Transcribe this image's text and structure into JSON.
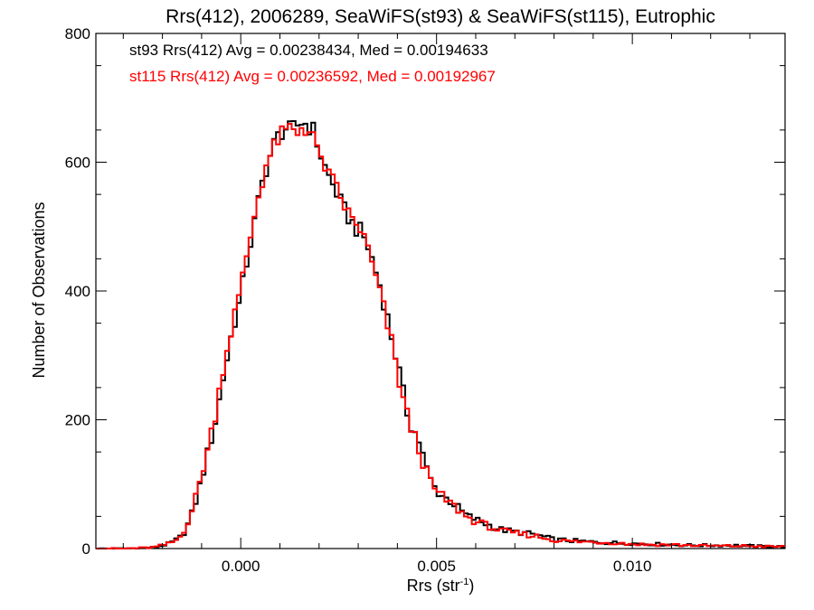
{
  "chart_data": {
    "type": "histogram",
    "title": "Rrs(412), 2006289, SeaWiFS(st93) & SeaWiFS(st115), Eutrophic",
    "xlabel": "Rrs (str",
    "xlabel_sup": "-1",
    "xlabel_close": ")",
    "ylabel": "Number of Observations",
    "xlim": [
      -0.0037,
      0.0139
    ],
    "ylim": [
      0,
      800
    ],
    "xticks": [
      0.0,
      0.005,
      0.01
    ],
    "xtick_labels": [
      "0.000",
      "0.005",
      "0.010"
    ],
    "yticks": [
      0,
      200,
      400,
      600,
      800
    ],
    "ytick_labels": [
      "0",
      "200",
      "400",
      "600",
      "800"
    ],
    "grid": false,
    "legend_placement": "top-left",
    "bin_width": 0.0001,
    "series": [
      {
        "name": "st93",
        "color": "#000000",
        "annotation": "st93 Rrs(412) Avg = 0.00238434, Med = 0.00194633",
        "points": [
          [
            -0.0037,
            0
          ],
          [
            -0.003,
            0
          ],
          [
            -0.0025,
            1
          ],
          [
            -0.0022,
            2
          ],
          [
            -0.002,
            5
          ],
          [
            -0.0018,
            8
          ],
          [
            -0.0016,
            15
          ],
          [
            -0.0015,
            20
          ],
          [
            -0.0014,
            30
          ],
          [
            -0.0013,
            45
          ],
          [
            -0.0012,
            62
          ],
          [
            -0.0011,
            85
          ],
          [
            -0.001,
            108
          ],
          [
            -0.0009,
            135
          ],
          [
            -0.0008,
            158
          ],
          [
            -0.0007,
            185
          ],
          [
            -0.0006,
            210
          ],
          [
            -0.0005,
            250
          ],
          [
            -0.0004,
            280
          ],
          [
            -0.0003,
            310
          ],
          [
            -0.0002,
            345
          ],
          [
            -0.0001,
            365
          ],
          [
            0.0,
            390
          ],
          [
            0.0001,
            430
          ],
          [
            0.0002,
            460
          ],
          [
            0.0003,
            490
          ],
          [
            0.0004,
            520
          ],
          [
            0.0005,
            555
          ],
          [
            0.0006,
            580
          ],
          [
            0.0007,
            600
          ],
          [
            0.0008,
            620
          ],
          [
            0.0009,
            635
          ],
          [
            0.001,
            645
          ],
          [
            0.0011,
            650
          ],
          [
            0.0012,
            655
          ],
          [
            0.0013,
            645
          ],
          [
            0.0014,
            660
          ],
          [
            0.0015,
            655
          ],
          [
            0.0016,
            670
          ],
          [
            0.0017,
            650
          ],
          [
            0.0018,
            660
          ],
          [
            0.0019,
            640
          ],
          [
            0.002,
            620
          ],
          [
            0.0021,
            600
          ],
          [
            0.0022,
            585
          ],
          [
            0.0023,
            570
          ],
          [
            0.0024,
            560
          ],
          [
            0.0025,
            545
          ],
          [
            0.0026,
            530
          ],
          [
            0.0027,
            520
          ],
          [
            0.0028,
            510
          ],
          [
            0.0029,
            500
          ],
          [
            0.003,
            495
          ],
          [
            0.0031,
            490
          ],
          [
            0.0032,
            475
          ],
          [
            0.0033,
            460
          ],
          [
            0.0034,
            440
          ],
          [
            0.0035,
            420
          ],
          [
            0.0036,
            400
          ],
          [
            0.0037,
            370
          ],
          [
            0.0038,
            345
          ],
          [
            0.0039,
            315
          ],
          [
            0.004,
            290
          ],
          [
            0.0041,
            255
          ],
          [
            0.0042,
            225
          ],
          [
            0.0043,
            200
          ],
          [
            0.0044,
            185
          ],
          [
            0.0045,
            175
          ],
          [
            0.0046,
            160
          ],
          [
            0.0047,
            130
          ],
          [
            0.0048,
            115
          ],
          [
            0.0049,
            100
          ],
          [
            0.005,
            90
          ],
          [
            0.0052,
            80
          ],
          [
            0.0054,
            72
          ],
          [
            0.0056,
            60
          ],
          [
            0.0058,
            50
          ],
          [
            0.006,
            45
          ],
          [
            0.0062,
            40
          ],
          [
            0.0064,
            35
          ],
          [
            0.0066,
            30
          ],
          [
            0.0068,
            28
          ],
          [
            0.007,
            26
          ],
          [
            0.0075,
            22
          ],
          [
            0.008,
            14
          ],
          [
            0.0085,
            12
          ],
          [
            0.009,
            10
          ],
          [
            0.0095,
            9
          ],
          [
            0.01,
            8
          ],
          [
            0.0105,
            7
          ],
          [
            0.011,
            6
          ],
          [
            0.0115,
            5
          ],
          [
            0.012,
            5
          ],
          [
            0.0125,
            5
          ],
          [
            0.013,
            4
          ],
          [
            0.0135,
            3
          ],
          [
            0.0139,
            3
          ]
        ]
      },
      {
        "name": "st115",
        "color": "#ff0000",
        "annotation": "st115 Rrs(412) Avg = 0.00236592, Med = 0.00192967",
        "points": [
          [
            -0.0037,
            0
          ],
          [
            -0.003,
            0
          ],
          [
            -0.0025,
            1
          ],
          [
            -0.0022,
            2
          ],
          [
            -0.002,
            5
          ],
          [
            -0.0018,
            8
          ],
          [
            -0.0016,
            15
          ],
          [
            -0.0015,
            22
          ],
          [
            -0.0014,
            35
          ],
          [
            -0.0013,
            50
          ],
          [
            -0.0012,
            68
          ],
          [
            -0.0011,
            90
          ],
          [
            -0.001,
            115
          ],
          [
            -0.0009,
            140
          ],
          [
            -0.0008,
            165
          ],
          [
            -0.0007,
            195
          ],
          [
            -0.0006,
            225
          ],
          [
            -0.0005,
            265
          ],
          [
            -0.0004,
            300
          ],
          [
            -0.0003,
            320
          ],
          [
            -0.0002,
            355
          ],
          [
            -0.0001,
            375
          ],
          [
            0.0,
            400
          ],
          [
            0.0001,
            440
          ],
          [
            0.0002,
            470
          ],
          [
            0.0003,
            500
          ],
          [
            0.0004,
            535
          ],
          [
            0.0005,
            560
          ],
          [
            0.0006,
            585
          ],
          [
            0.0007,
            605
          ],
          [
            0.0008,
            615
          ],
          [
            0.0009,
            630
          ],
          [
            0.001,
            640
          ],
          [
            0.0011,
            645
          ],
          [
            0.0012,
            650
          ],
          [
            0.0013,
            655
          ],
          [
            0.0014,
            640
          ],
          [
            0.0015,
            650
          ],
          [
            0.0016,
            660
          ],
          [
            0.0017,
            645
          ],
          [
            0.0018,
            655
          ],
          [
            0.0019,
            630
          ],
          [
            0.002,
            600
          ],
          [
            0.0021,
            610
          ],
          [
            0.0022,
            580
          ],
          [
            0.0023,
            575
          ],
          [
            0.0024,
            565
          ],
          [
            0.0025,
            550
          ],
          [
            0.0026,
            540
          ],
          [
            0.0027,
            525
          ],
          [
            0.0028,
            515
          ],
          [
            0.0029,
            505
          ],
          [
            0.003,
            500
          ],
          [
            0.0031,
            495
          ],
          [
            0.0032,
            470
          ],
          [
            0.0033,
            455
          ],
          [
            0.0034,
            430
          ],
          [
            0.0035,
            410
          ],
          [
            0.0036,
            385
          ],
          [
            0.0037,
            360
          ],
          [
            0.0038,
            335
          ],
          [
            0.0039,
            305
          ],
          [
            0.004,
            275
          ],
          [
            0.0041,
            245
          ],
          [
            0.0042,
            220
          ],
          [
            0.0043,
            195
          ],
          [
            0.0044,
            180
          ],
          [
            0.0045,
            165
          ],
          [
            0.0046,
            145
          ],
          [
            0.0047,
            125
          ],
          [
            0.0048,
            110
          ],
          [
            0.0049,
            98
          ],
          [
            0.005,
            88
          ],
          [
            0.0052,
            78
          ],
          [
            0.0054,
            68
          ],
          [
            0.0056,
            58
          ],
          [
            0.0058,
            48
          ],
          [
            0.006,
            42
          ],
          [
            0.0062,
            38
          ],
          [
            0.0064,
            33
          ],
          [
            0.0066,
            28
          ],
          [
            0.0068,
            26
          ],
          [
            0.007,
            24
          ],
          [
            0.0075,
            20
          ],
          [
            0.008,
            13
          ],
          [
            0.0085,
            11
          ],
          [
            0.009,
            10
          ],
          [
            0.0095,
            9
          ],
          [
            0.01,
            7
          ],
          [
            0.0105,
            6
          ],
          [
            0.011,
            6
          ],
          [
            0.0115,
            5
          ],
          [
            0.012,
            4
          ],
          [
            0.0125,
            4
          ],
          [
            0.013,
            4
          ],
          [
            0.0135,
            3
          ],
          [
            0.0139,
            3
          ]
        ]
      }
    ]
  }
}
